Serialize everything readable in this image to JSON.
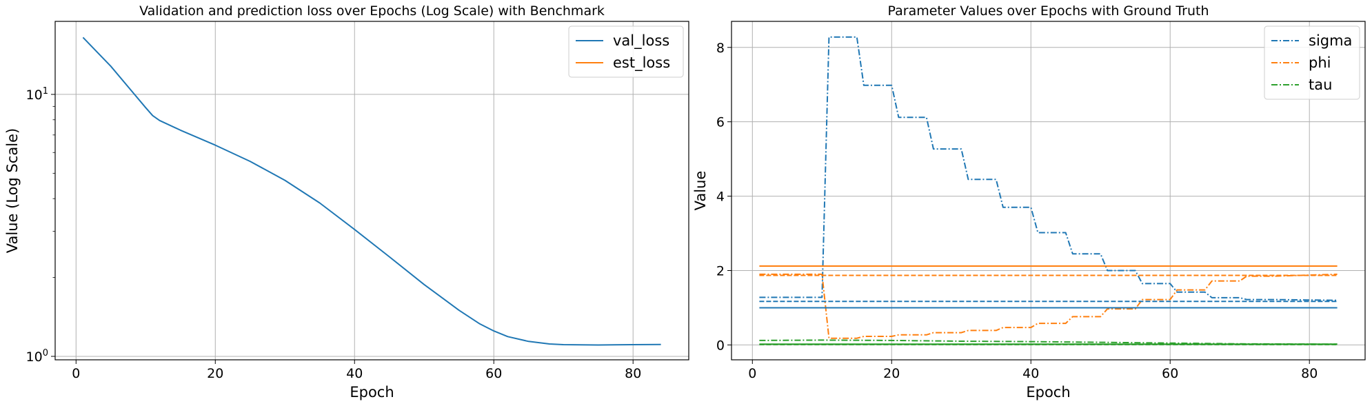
{
  "chart_data": [
    {
      "type": "line",
      "title": "Validation and prediction loss over Epochs (Log Scale) with Benchmark",
      "xlabel": "Epoch",
      "ylabel": "Value (Log Scale)",
      "yscale": "log",
      "xlim": [
        -3,
        88
      ],
      "ylim": [
        0.97,
        19.0
      ],
      "xticks": [
        0,
        20,
        40,
        60,
        80
      ],
      "yticks": [
        {
          "value": 1,
          "base": "10",
          "exp": "0"
        },
        {
          "value": 10,
          "base": "10",
          "exp": "1"
        }
      ],
      "grid": true,
      "legend": "top-right",
      "series": [
        {
          "name": "val_loss",
          "color": "#1f77b4",
          "style": "solid",
          "x": [
            1,
            5,
            10,
            11,
            12,
            15,
            20,
            25,
            30,
            35,
            40,
            45,
            50,
            55,
            58,
            60,
            62,
            65,
            68,
            70,
            75,
            80,
            84
          ],
          "y": [
            16.5,
            12.8,
            8.9,
            8.3,
            7.95,
            7.3,
            6.4,
            5.55,
            4.7,
            3.85,
            3.05,
            2.4,
            1.88,
            1.5,
            1.33,
            1.25,
            1.19,
            1.14,
            1.115,
            1.108,
            1.105,
            1.108,
            1.11
          ]
        },
        {
          "name": "est_loss",
          "color": "#ff7f0e",
          "style": "solid",
          "x": [],
          "y": []
        }
      ]
    },
    {
      "type": "line",
      "title": "Parameter Values over Epochs with Ground Truth",
      "xlabel": "Epoch",
      "ylabel": "Value",
      "xlim": [
        -3,
        88
      ],
      "ylim": [
        -0.4,
        8.7
      ],
      "xticks": [
        0,
        20,
        40,
        60,
        80
      ],
      "yticks": [
        0,
        2,
        4,
        6,
        8
      ],
      "grid": true,
      "legend": "top-right",
      "series": [
        {
          "name": "sigma",
          "color": "#1f77b4",
          "style": "dashdot",
          "x": [
            1,
            10,
            11,
            15,
            16,
            20,
            21,
            25,
            26,
            30,
            31,
            35,
            36,
            40,
            41,
            45,
            46,
            50,
            51,
            55,
            56,
            60,
            61,
            65,
            66,
            70,
            71,
            75,
            84
          ],
          "y": [
            1.28,
            1.28,
            8.28,
            8.28,
            6.98,
            6.98,
            6.12,
            6.12,
            5.27,
            5.27,
            4.45,
            4.45,
            3.7,
            3.7,
            3.02,
            3.02,
            2.45,
            2.45,
            2.0,
            2.0,
            1.65,
            1.65,
            1.42,
            1.42,
            1.27,
            1.27,
            1.22,
            1.22,
            1.2
          ]
        },
        {
          "name": "phi",
          "color": "#ff7f0e",
          "style": "dashdot",
          "x": [
            1,
            10,
            11,
            15,
            16,
            20,
            21,
            25,
            26,
            30,
            31,
            35,
            36,
            40,
            41,
            45,
            46,
            50,
            51,
            55,
            56,
            60,
            61,
            65,
            66,
            70,
            71,
            75,
            84
          ],
          "y": [
            1.9,
            1.9,
            0.18,
            0.18,
            0.23,
            0.23,
            0.27,
            0.27,
            0.33,
            0.33,
            0.39,
            0.39,
            0.47,
            0.47,
            0.58,
            0.58,
            0.76,
            0.76,
            0.97,
            0.97,
            1.22,
            1.22,
            1.48,
            1.48,
            1.72,
            1.72,
            1.85,
            1.85,
            1.9
          ]
        },
        {
          "name": "tau",
          "color": "#2ca02c",
          "style": "dashdot",
          "x": [
            1,
            10,
            20,
            30,
            40,
            50,
            60,
            70,
            84
          ],
          "y": [
            0.12,
            0.13,
            0.12,
            0.1,
            0.09,
            0.07,
            0.05,
            0.03,
            0.02
          ]
        },
        {
          "name": "",
          "color": "#1f77b4",
          "style": "solid",
          "x": [
            1,
            84
          ],
          "y": [
            1.0,
            1.0
          ]
        },
        {
          "name": "",
          "color": "#ff7f0e",
          "style": "solid",
          "x": [
            1,
            84
          ],
          "y": [
            2.12,
            2.12
          ]
        },
        {
          "name": "",
          "color": "#2ca02c",
          "style": "solid",
          "x": [
            1,
            84
          ],
          "y": [
            0.02,
            0.02
          ]
        },
        {
          "name": "",
          "color": "#1f77b4",
          "style": "dashed",
          "x": [
            1,
            84
          ],
          "y": [
            1.17,
            1.17
          ]
        },
        {
          "name": "",
          "color": "#ff7f0e",
          "style": "dashed",
          "x": [
            1,
            84
          ],
          "y": [
            1.87,
            1.87
          ]
        },
        {
          "name": "",
          "color": "#2ca02c",
          "style": "dashed",
          "x": [
            1,
            84
          ],
          "y": [
            0.01,
            0.01
          ]
        }
      ]
    }
  ]
}
